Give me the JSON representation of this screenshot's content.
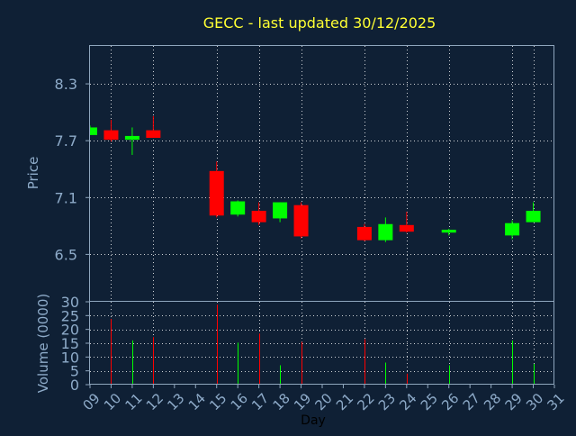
{
  "title": "GECC - last updated 30/12/2025",
  "colors": {
    "background": "#0f2035",
    "plot_border": "#8fa6bd",
    "grid": "#ffffff",
    "title": "#ffff33",
    "axis_text": "#8eabc9",
    "xlabel_text": "#000000",
    "up": "#00ff00",
    "down": "#ff0000"
  },
  "chart_data": [
    {
      "type": "candlestick",
      "title": "GECC - last updated 30/12/2025",
      "ylabel": "Price",
      "ylim": [
        6.0,
        8.7
      ],
      "y_ticks": [
        6.5,
        7.1,
        7.7,
        8.3
      ],
      "y_tick_labels": [
        "6.5",
        "7.1",
        "7.7",
        "8.3"
      ],
      "x_range": [
        9,
        31
      ],
      "x_grid_days": [
        10,
        12,
        15,
        17,
        19,
        22,
        24,
        26,
        29,
        30
      ],
      "grid": true,
      "candles": [
        {
          "day": 9,
          "open": 7.76,
          "high": 7.86,
          "low": 7.76,
          "close": 7.84,
          "direction": "up"
        },
        {
          "day": 10,
          "open": 7.81,
          "high": 7.92,
          "low": 7.69,
          "close": 7.71,
          "direction": "down"
        },
        {
          "day": 11,
          "open": 7.71,
          "high": 7.84,
          "low": 7.55,
          "close": 7.75,
          "direction": "up"
        },
        {
          "day": 12,
          "open": 7.81,
          "high": 7.96,
          "low": 7.73,
          "close": 7.73,
          "direction": "down"
        },
        {
          "day": 15,
          "open": 7.38,
          "high": 7.48,
          "low": 6.89,
          "close": 6.91,
          "direction": "down"
        },
        {
          "day": 16,
          "open": 6.92,
          "high": 7.07,
          "low": 6.9,
          "close": 7.06,
          "direction": "up"
        },
        {
          "day": 17,
          "open": 6.96,
          "high": 7.05,
          "low": 6.81,
          "close": 6.84,
          "direction": "down"
        },
        {
          "day": 18,
          "open": 6.88,
          "high": 7.05,
          "low": 6.84,
          "close": 7.05,
          "direction": "up"
        },
        {
          "day": 19,
          "open": 7.02,
          "high": 7.05,
          "low": 6.67,
          "close": 6.69,
          "direction": "down"
        },
        {
          "day": 22,
          "open": 6.79,
          "high": 6.82,
          "low": 6.64,
          "close": 6.65,
          "direction": "down"
        },
        {
          "day": 23,
          "open": 6.65,
          "high": 6.89,
          "low": 6.63,
          "close": 6.82,
          "direction": "up"
        },
        {
          "day": 24,
          "open": 6.81,
          "high": 6.95,
          "low": 6.73,
          "close": 6.74,
          "direction": "down"
        },
        {
          "day": 26,
          "open": 6.73,
          "high": 6.77,
          "low": 6.7,
          "close": 6.76,
          "direction": "up"
        },
        {
          "day": 29,
          "open": 6.7,
          "high": 6.86,
          "low": 6.66,
          "close": 6.83,
          "direction": "up"
        },
        {
          "day": 30,
          "open": 6.84,
          "high": 7.05,
          "low": 6.84,
          "close": 6.96,
          "direction": "up"
        }
      ]
    },
    {
      "type": "bar",
      "ylabel": "Volume (0000)",
      "xlabel": "Day",
      "ylim": [
        0,
        30
      ],
      "y_ticks": [
        0,
        5,
        10,
        15,
        20,
        25,
        30
      ],
      "y_tick_labels": [
        "0",
        "5",
        "10",
        "15",
        "20",
        "25",
        "30"
      ],
      "x_range": [
        9,
        31
      ],
      "x_tick_labels": [
        "09",
        "10",
        "11",
        "12",
        "13",
        "14",
        "15",
        "16",
        "17",
        "18",
        "19",
        "20",
        "21",
        "22",
        "23",
        "24",
        "25",
        "26",
        "27",
        "28",
        "29",
        "30",
        "31"
      ],
      "grid": true,
      "bars": [
        {
          "day": 10,
          "value": 23.8,
          "direction": "down"
        },
        {
          "day": 11,
          "value": 16.0,
          "direction": "up"
        },
        {
          "day": 12,
          "value": 17.2,
          "direction": "down"
        },
        {
          "day": 15,
          "value": 29.0,
          "direction": "down"
        },
        {
          "day": 16,
          "value": 15.2,
          "direction": "up"
        },
        {
          "day": 17,
          "value": 18.5,
          "direction": "down"
        },
        {
          "day": 18,
          "value": 7.0,
          "direction": "up"
        },
        {
          "day": 19,
          "value": 15.5,
          "direction": "down"
        },
        {
          "day": 22,
          "value": 16.5,
          "direction": "down"
        },
        {
          "day": 23,
          "value": 8.0,
          "direction": "up"
        },
        {
          "day": 24,
          "value": 4.0,
          "direction": "down"
        },
        {
          "day": 26,
          "value": 7.0,
          "direction": "up"
        },
        {
          "day": 29,
          "value": 16.0,
          "direction": "up"
        },
        {
          "day": 30,
          "value": 7.5,
          "direction": "up"
        }
      ]
    }
  ]
}
